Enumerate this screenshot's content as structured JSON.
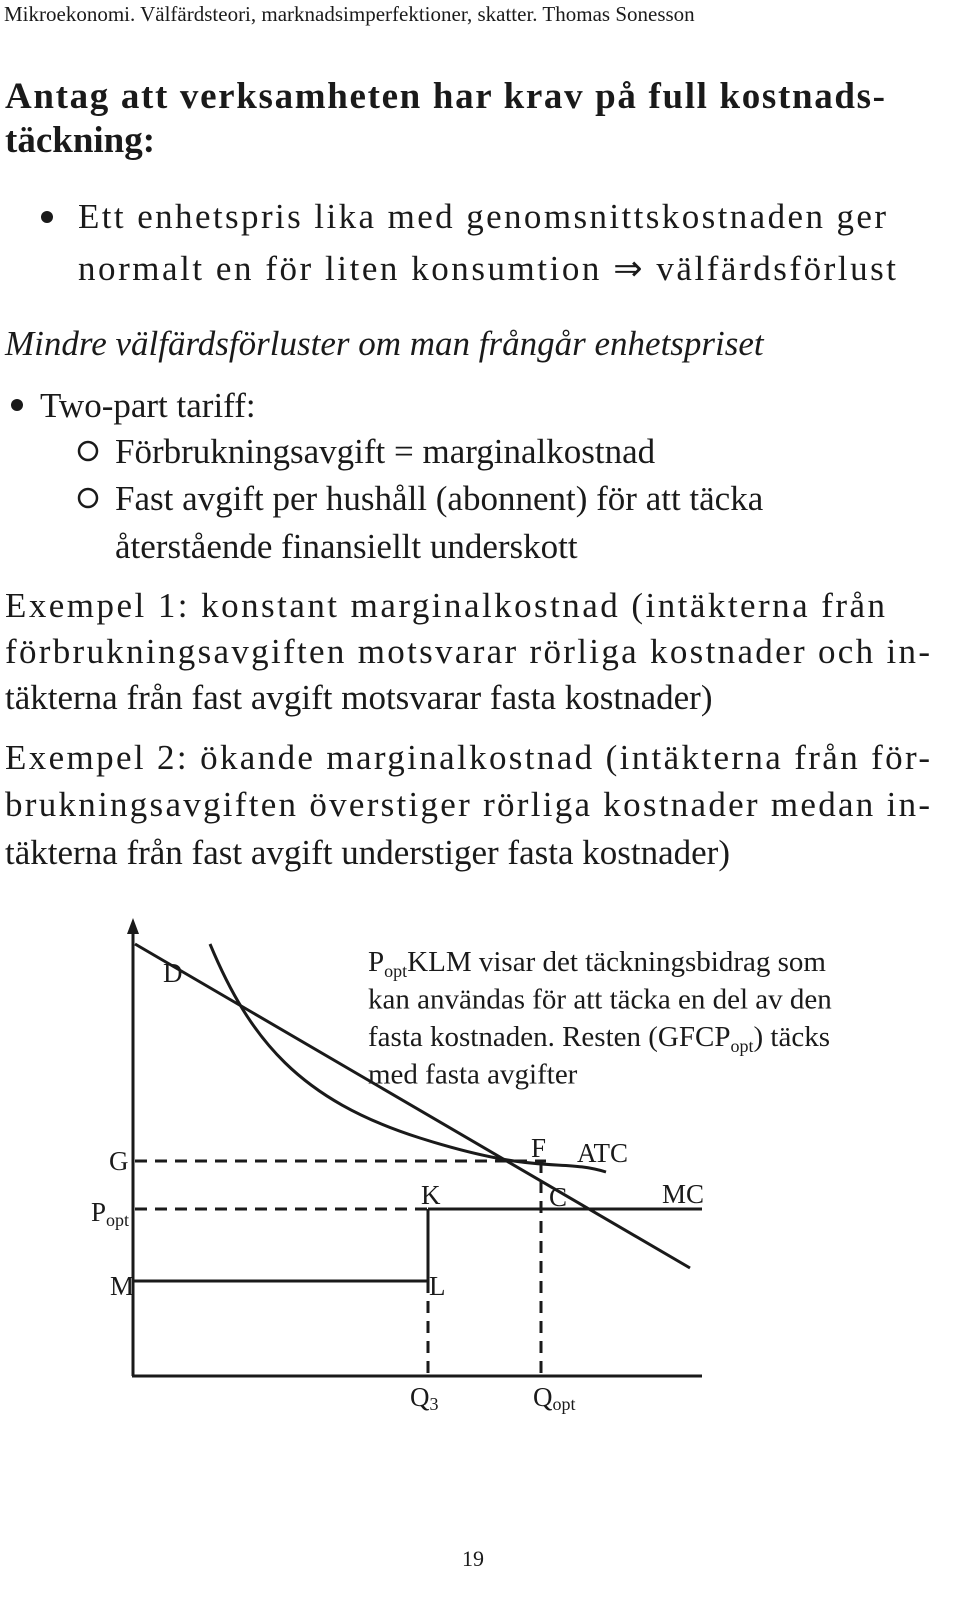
{
  "header": "Mikroekonomi. Välfärdsteori, marknadsimperfektioner, skatter. Thomas Sonesson",
  "heading": {
    "lines": [
      "Antag att verksamheten har krav på full kostnads-",
      "täckning:"
    ]
  },
  "bullet1": {
    "lines": [
      "Ett enhetspris lika med genomsnittskostnaden ger",
      "normalt en för liten konsumtion ⇒ välfärdsförlust"
    ]
  },
  "note": "Mindre välfärdsförluster om man frångår enhetspriset",
  "bullet2": "Two-part tariff:",
  "subitems": [
    {
      "lines": [
        "Förbrukningsavgift = marginalkostnad"
      ]
    },
    {
      "lines": [
        "Fast avgift per hushåll (abonnent) för att täcka",
        "återstående finansiellt underskott"
      ]
    }
  ],
  "example1": {
    "lines": [
      "Exempel 1: konstant marginalkostnad (intäkterna från",
      "förbrukningsavgiften motsvarar rörliga kostnader och in-",
      "täkterna från fast avgift motsvarar fasta kostnader)"
    ]
  },
  "example2": {
    "lines": [
      "Exempel 2: ökande marginalkostnad (intäkterna från för-",
      "brukningsavgiften överstiger rörliga kostnader medan in-",
      "täkterna från fast avgift understiger fasta kostnader)"
    ]
  },
  "diagram": {
    "labels": {
      "D": "D",
      "G": "G",
      "P": {
        "base": "P",
        "sub": "opt"
      },
      "M": "M",
      "K": "K",
      "L": "L",
      "F": "F",
      "C": "C",
      "ATC": "ATC",
      "MC": "MC",
      "Q3": {
        "base": "Q",
        "sub": "3"
      },
      "Qopt": {
        "base": "Q",
        "sub": "opt"
      }
    },
    "annotation": [
      [
        {
          "text": "P"
        },
        {
          "text": "opt",
          "sub": true
        },
        {
          "text": "KLM visar det täckningsbidrag som"
        }
      ],
      [
        {
          "text": "kan användas för att täcka en del av den"
        }
      ],
      [
        {
          "text": "fasta kostnaden. Resten (GFCP"
        },
        {
          "text": "opt",
          "sub": true
        },
        {
          "text": ") täcks"
        }
      ],
      [
        {
          "text": "med fasta avgifter"
        }
      ]
    ]
  },
  "page_number": "19"
}
